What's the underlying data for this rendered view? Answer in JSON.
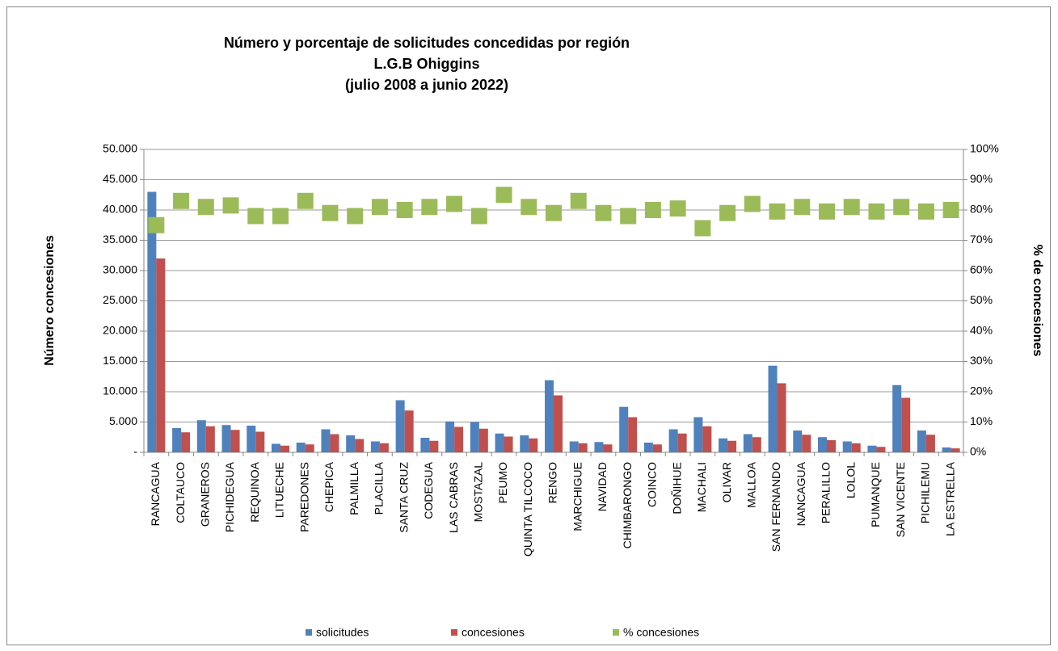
{
  "chart_data": {
    "type": "bar",
    "title": [
      "Número y porcentaje de solicitudes concedidas por región",
      "L.G.B Ohiggins",
      "(julio 2008 a junio 2022)"
    ],
    "ylabel": "Número concesiones",
    "y2label": "% de concesiones",
    "categories": [
      "RANCAGUA",
      "COLTAUCO",
      "GRANEROS",
      "PICHIDEGUA",
      "REQUINOA",
      "LITUECHE",
      "PAREDONES",
      "CHEPICA",
      "PALMILLA",
      "PLACILLA",
      "SANTA CRUZ",
      "CODEGUA",
      "LAS CABRAS",
      "MOSTAZAL",
      "PEUMO",
      "QUINTA TILCOCO",
      "RENGO",
      "MARCHIGUE",
      "NAVIDAD",
      "CHIMBARONGO",
      "COINCO",
      "DOÑIHUE",
      "MACHALI",
      "OLIVAR",
      "MALLOA",
      "SAN FERNANDO",
      "NANCAGUA",
      "PERALILLO",
      "LOLOL",
      "PUMANQUE",
      "SAN VICENTE",
      "PICHILEMU",
      "LA ESTRELLA"
    ],
    "series": [
      {
        "name": "solicitudes",
        "color": "#4f81bd",
        "type": "bar",
        "values": [
          43000,
          4000,
          5300,
          4500,
          4400,
          1400,
          1600,
          3800,
          2800,
          1800,
          8600,
          2400,
          5100,
          5000,
          3100,
          2800,
          11900,
          1800,
          1700,
          7500,
          1600,
          3800,
          5800,
          2300,
          3000,
          14300,
          3600,
          2500,
          1800,
          1100,
          11100,
          3600,
          800
        ]
      },
      {
        "name": "concesiones",
        "color": "#c0504d",
        "type": "bar",
        "values": [
          32000,
          3300,
          4300,
          3700,
          3400,
          1100,
          1300,
          3000,
          2200,
          1500,
          6900,
          1900,
          4200,
          3900,
          2600,
          2300,
          9400,
          1500,
          1300,
          5800,
          1300,
          3100,
          4300,
          1900,
          2500,
          11400,
          2900,
          2000,
          1500,
          900,
          9000,
          2900,
          650
        ]
      },
      {
        "name": "% concesiones",
        "color": "#9bbb59",
        "type": "scatter",
        "axis": "y2",
        "values": [
          75,
          83,
          81,
          81.5,
          78,
          78,
          83,
          79,
          78,
          81,
          80,
          81,
          82,
          78,
          85,
          81,
          79,
          83,
          79,
          78,
          80,
          80.5,
          74,
          79,
          82,
          79.5,
          81,
          79.5,
          81,
          79.5,
          81,
          79.5,
          80
        ]
      }
    ],
    "ylim": [
      0,
      50000
    ],
    "yticks": [
      {
        "value": 0,
        "label": "-"
      },
      {
        "value": 5000,
        "label": "5.000"
      },
      {
        "value": 10000,
        "label": "10.000"
      },
      {
        "value": 15000,
        "label": "15.000"
      },
      {
        "value": 20000,
        "label": "20.000"
      },
      {
        "value": 25000,
        "label": "25.000"
      },
      {
        "value": 30000,
        "label": "30.000"
      },
      {
        "value": 35000,
        "label": "35.000"
      },
      {
        "value": 40000,
        "label": "40.000"
      },
      {
        "value": 45000,
        "label": "45.000"
      },
      {
        "value": 50000,
        "label": "50.000"
      }
    ],
    "y2lim": [
      0,
      100
    ],
    "y2ticks": [
      {
        "value": 0,
        "label": "0%"
      },
      {
        "value": 10,
        "label": "10%"
      },
      {
        "value": 20,
        "label": "20%"
      },
      {
        "value": 30,
        "label": "30%"
      },
      {
        "value": 40,
        "label": "40%"
      },
      {
        "value": 50,
        "label": "50%"
      },
      {
        "value": 60,
        "label": "60%"
      },
      {
        "value": 70,
        "label": "70%"
      },
      {
        "value": 80,
        "label": "80%"
      },
      {
        "value": 90,
        "label": "90%"
      },
      {
        "value": 100,
        "label": "100%"
      }
    ],
    "grid": true,
    "legend": "bottom"
  }
}
